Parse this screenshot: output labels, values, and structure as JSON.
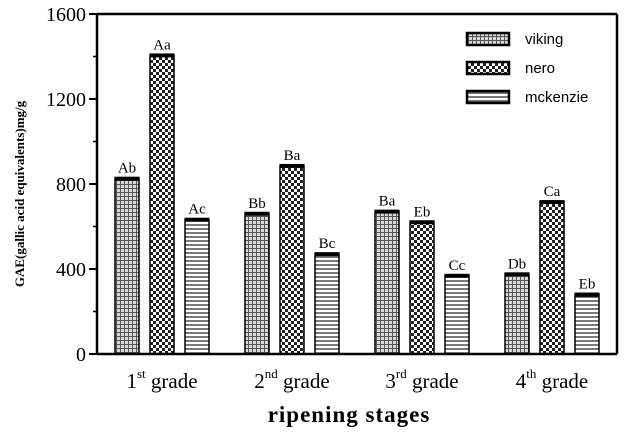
{
  "chart_data": {
    "type": "bar",
    "xlabel": "ripening stages",
    "ylabel": "GAE(gallic acid equivalents)mg/g",
    "ylim": [
      0,
      1600
    ],
    "yticks": [
      0,
      400,
      800,
      1200,
      1600
    ],
    "grid": false,
    "legend_position": "top-right",
    "categories": [
      {
        "base": "1",
        "sup": "st",
        "rest": " grade"
      },
      {
        "base": "2",
        "sup": "nd",
        "rest": " grade"
      },
      {
        "base": "3",
        "sup": "rd",
        "rest": " grade"
      },
      {
        "base": "4",
        "sup": "th",
        "rest": " grade"
      }
    ],
    "series": [
      {
        "name": "viking",
        "pattern": "grid",
        "values": [
          825,
          660,
          670,
          375
        ],
        "labels": [
          "Ab",
          "Bb",
          "Ba",
          "Db"
        ]
      },
      {
        "name": "nero",
        "pattern": "checker",
        "values": [
          1405,
          885,
          620,
          715
        ],
        "labels": [
          "Aa",
          "Ba",
          "Eb",
          "Ca"
        ]
      },
      {
        "name": "mckenzie",
        "pattern": "hlines",
        "values": [
          632,
          470,
          368,
          280
        ],
        "labels": [
          "Ac",
          "Bc",
          "Cc",
          "Eb"
        ]
      }
    ]
  }
}
